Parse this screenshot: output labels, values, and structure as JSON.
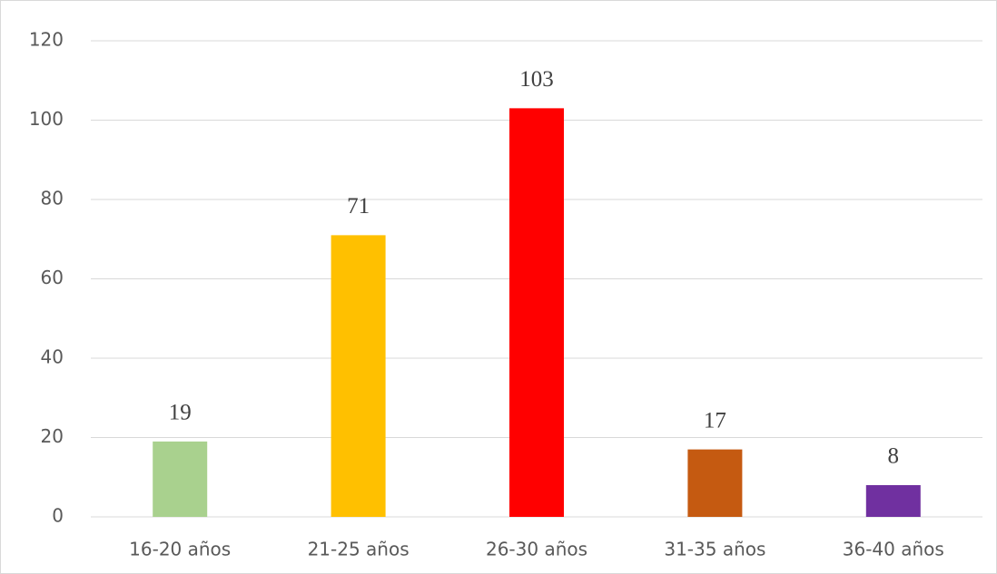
{
  "chart_data": {
    "type": "bar",
    "categories": [
      "16-20 años",
      "21-25 años",
      "26-30 años",
      "31-35 años",
      "36-40 años"
    ],
    "values": [
      19,
      71,
      103,
      17,
      8
    ],
    "colors": [
      "#a9d18e",
      "#ffc000",
      "#ff0000",
      "#c55a11",
      "#7030a0"
    ],
    "ylim": [
      0,
      120
    ],
    "yticks": [
      0,
      20,
      40,
      60,
      80,
      100,
      120
    ],
    "grid": true
  }
}
